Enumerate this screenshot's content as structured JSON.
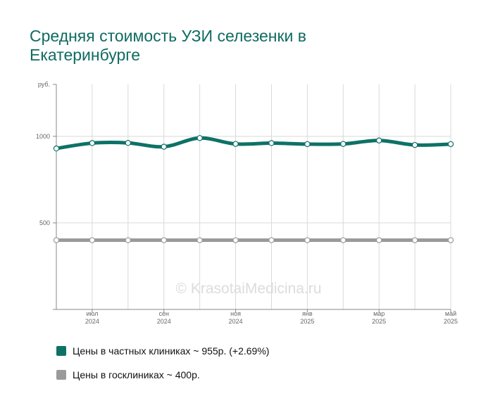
{
  "page": {
    "title": "Средняя стоимость УЗИ селезенки в Екатеринбурге",
    "watermark": "© KrasotaiMedicina.ru"
  },
  "colors": {
    "private": "#0e7167",
    "public": "#9a9a9a",
    "grid": "#d9d9d9",
    "axis": "#888888",
    "title": "#0f6b61"
  },
  "chart_data": {
    "type": "line",
    "ylabel": "руб.",
    "ylim": [
      0,
      1300
    ],
    "yticks": [
      500,
      1000
    ],
    "x": [
      "2024-06",
      "2024-07",
      "2024-08",
      "2024-09",
      "2024-10",
      "2024-11",
      "2024-12",
      "2025-01",
      "2025-02",
      "2025-03",
      "2025-04",
      "2025-05"
    ],
    "xtick_labels": [
      {
        "month": "июл",
        "year": "2024",
        "index": 1
      },
      {
        "month": "сен",
        "year": "2024",
        "index": 3
      },
      {
        "month": "ноя",
        "year": "2024",
        "index": 5
      },
      {
        "month": "янв",
        "year": "2025",
        "index": 7
      },
      {
        "month": "мар",
        "year": "2025",
        "index": 9
      },
      {
        "month": "май",
        "year": "2025",
        "index": 11
      }
    ],
    "series": [
      {
        "name": "Цены в частных клиниках ~ 955р. (+2.69%)",
        "color": "#0e7167",
        "values": [
          930,
          961,
          962,
          940,
          990,
          956,
          961,
          955,
          956,
          976,
          950,
          955
        ]
      },
      {
        "name": "Цены в госклиниках ~ 400р.",
        "color": "#9a9a9a",
        "values": [
          400,
          400,
          400,
          400,
          400,
          400,
          400,
          400,
          400,
          400,
          400,
          400
        ]
      }
    ]
  }
}
